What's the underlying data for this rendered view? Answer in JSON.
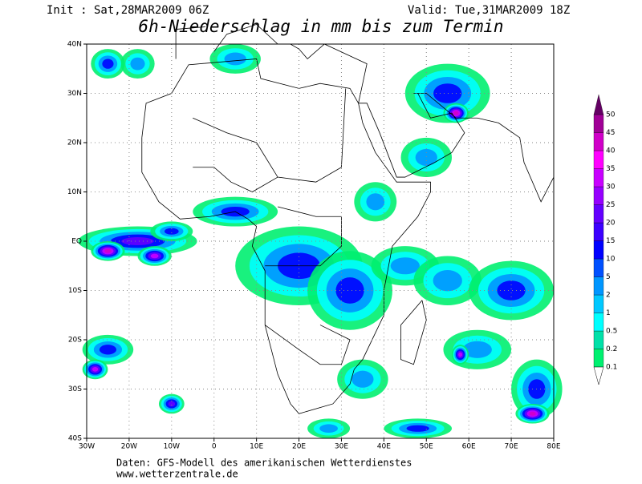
{
  "header": {
    "init": "Init : Sat,28MAR2009 06Z",
    "valid": "Valid: Tue,31MAR2009 18Z",
    "title": "6h-Niederschlag in mm bis zum Termin"
  },
  "map": {
    "lat_labels": [
      "40N",
      "30N",
      "20N",
      "10N",
      "EQ",
      "10S",
      "20S",
      "30S",
      "40S"
    ],
    "lon_labels": [
      "30W",
      "20W",
      "10W",
      "0",
      "10E",
      "20E",
      "30E",
      "40E",
      "50E",
      "60E",
      "70E",
      "80E"
    ]
  },
  "legend": {
    "levels": [
      "0.1",
      "0.2",
      "0.5",
      "1",
      "2",
      "5",
      "10",
      "15",
      "20",
      "25",
      "30",
      "35",
      "40",
      "45",
      "50"
    ],
    "colors": [
      "#00f070",
      "#00e0a8",
      "#00ffff",
      "#00c8ff",
      "#0096ff",
      "#0050ff",
      "#0000ff",
      "#3c00ff",
      "#6400ff",
      "#9600ff",
      "#c800ff",
      "#ff00ff",
      "#d000c8",
      "#a00096",
      "#640064"
    ]
  },
  "footer": {
    "source": "Daten: GFS-Modell des amerikanischen Wetterdienstes",
    "url": "www.wetterzentrale.de"
  }
}
